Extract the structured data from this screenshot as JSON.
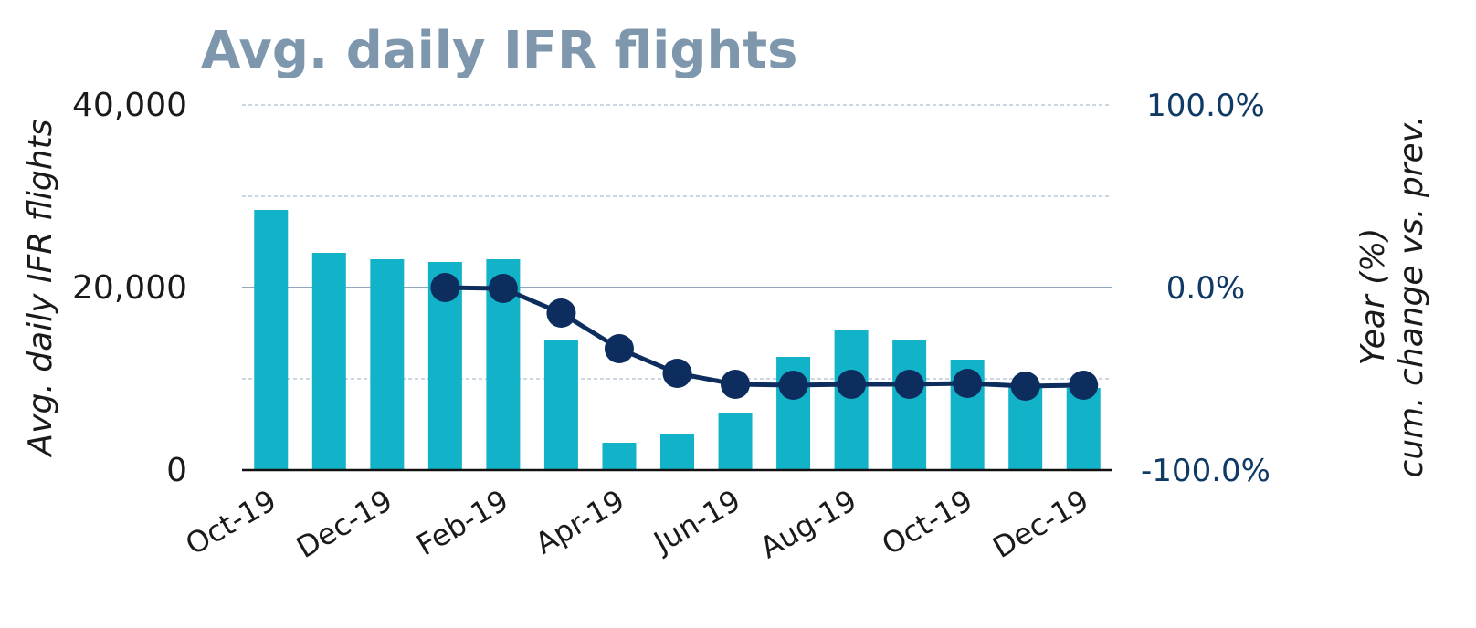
{
  "chart_data": {
    "type": "bar+line",
    "title": "Avg. daily IFR flights",
    "categories": [
      "Oct-19",
      "Nov-19",
      "Dec-19",
      "Jan-19",
      "Feb-19",
      "Mar-19",
      "Apr-19",
      "May-19",
      "Jun-19",
      "Jul-19",
      "Aug-19",
      "Sep-19",
      "Oct-19",
      "Nov-19",
      "Dec-19"
    ],
    "x_tick_labels": [
      "Oct-19",
      "Dec-19",
      "Feb-19",
      "Apr-19",
      "Jun-19",
      "Aug-19",
      "Oct-19",
      "Dec-19"
    ],
    "series": [
      {
        "type": "bar",
        "axis": "left",
        "values": [
          28500,
          23800,
          23100,
          22800,
          23100,
          14300,
          3000,
          4000,
          6200,
          12400,
          15300,
          14300,
          12100,
          9200,
          9000
        ]
      },
      {
        "type": "line",
        "axis": "right",
        "values": [
          null,
          null,
          null,
          0.0,
          -0.5,
          -14.0,
          -33.5,
          -47.0,
          -53.0,
          -53.5,
          -53.0,
          -53.0,
          -52.5,
          -54.0,
          -53.5
        ]
      }
    ],
    "ylabel": "Avg. daily IFR flights",
    "y2label_lines": [
      "cum. change vs. prev.",
      "Year (%)"
    ],
    "ylim": [
      0,
      40000
    ],
    "y_ticks": [
      "0",
      "20,000",
      "40,000"
    ],
    "y2lim": [
      -100,
      100
    ],
    "y2_ticks": [
      "-100.0%",
      "0.0%",
      "100.0%"
    ],
    "grid": true,
    "legend": "none",
    "colors": {
      "bar": "#12b2c9",
      "line": "#0d2d5e",
      "title": "#7e97ad",
      "grid": "#aebfcf",
      "zero_line": "#6f88a6",
      "axis": "#111111"
    }
  }
}
